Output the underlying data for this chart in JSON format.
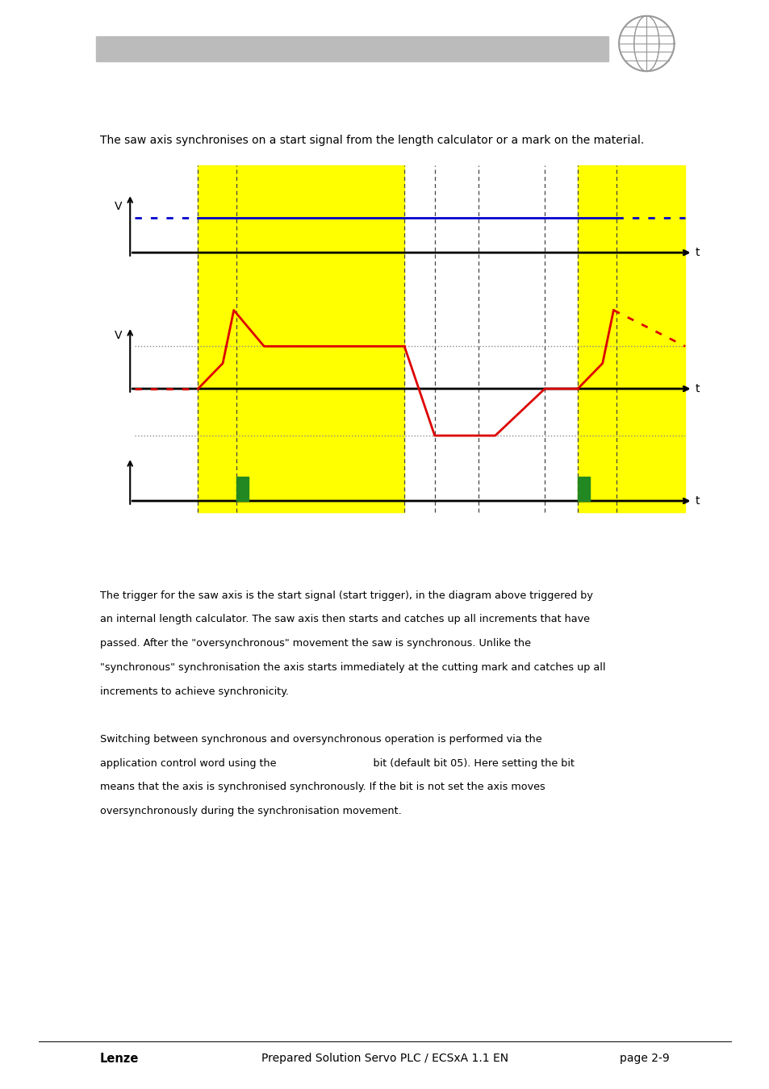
{
  "page_bg": "#ffffff",
  "header_bar_color": "#bbbbbb",
  "intro_text": "The saw axis synchronises on a start signal from the length calculator or a mark on the material.",
  "yellow_color": "#ffff00",
  "blue_line_color": "#0000cc",
  "red_line_color": "#dd0000",
  "green_pulse_color": "#228822",
  "dashed_color": "#444444",
  "gray_ref_color": "#888888",
  "footer_lines": [
    "The trigger for the saw axis is the start signal (start trigger), in the diagram above triggered by",
    "an internal length calculator. The saw axis then starts and catches up all increments that have",
    "passed. After the \"oversynchronous\" movement the saw is synchronous. Unlike the",
    "\"synchronous\" synchronisation the axis starts immediately at the cutting mark and catches up all",
    "increments to achieve synchronicity.",
    "",
    "Switching between synchronous and oversynchronous operation is performed via the",
    "application control word using the                              bit (default bit 05). Here setting the bit",
    "means that the axis is synchronised synchronously. If the bit is not set the axis moves",
    "oversynchronously during the synchronisation movement."
  ],
  "bottom_left": "Lenze",
  "bottom_center": "Prepared Solution Servo PLC / ECSxA 1.1 EN",
  "bottom_right": "page 2-9"
}
